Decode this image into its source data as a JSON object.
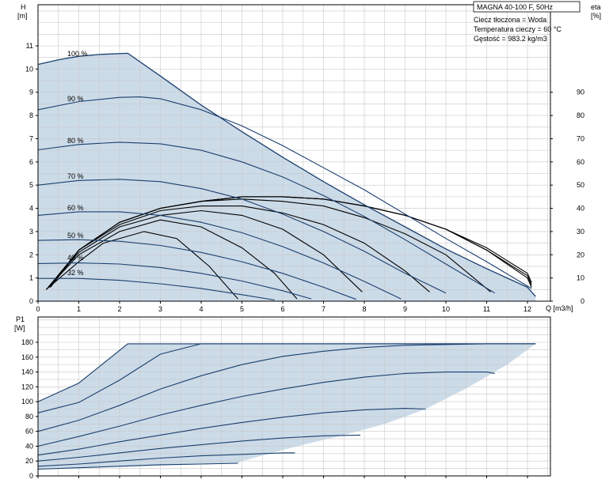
{
  "chart_data": [
    {
      "type": "line",
      "title": "MAGNA 40-100 F, 50Hz",
      "info_lines": [
        "Ciecz tłoczona = Woda",
        "Temperatura cieczy = 60 °C",
        "Gęstość = 983.2 kg/m3"
      ],
      "ylabel": [
        "H",
        "[m]"
      ],
      "y2label": [
        "eta",
        "[%]"
      ],
      "xlabel": "Q [m3/h]",
      "xlim": [
        0,
        12.5
      ],
      "ylim": [
        0,
        12
      ],
      "y2lim": [
        0,
        100
      ],
      "xticks": [
        0,
        1,
        2,
        3,
        4,
        5,
        6,
        7,
        8,
        9,
        10,
        11,
        12
      ],
      "yticks": [
        0,
        1,
        2,
        3,
        4,
        5,
        6,
        7,
        8,
        9,
        10,
        11
      ],
      "y2ticks": [
        0,
        10,
        20,
        30,
        40,
        50,
        60,
        70,
        80,
        90
      ],
      "grid": true,
      "operating_area": [
        [
          0,
          10.2
        ],
        [
          0.5,
          10.4
        ],
        [
          1.0,
          10.55
        ],
        [
          1.5,
          10.63
        ],
        [
          2.2,
          10.68
        ],
        [
          3.0,
          9.7
        ],
        [
          4.0,
          8.45
        ],
        [
          5.0,
          7.3
        ],
        [
          6.0,
          6.2
        ],
        [
          7.0,
          5.15
        ],
        [
          8.0,
          4.15
        ],
        [
          9.0,
          3.2
        ],
        [
          10.0,
          2.25
        ],
        [
          11.0,
          1.4
        ],
        [
          12.0,
          0.6
        ],
        [
          12.2,
          0.2
        ],
        [
          12.2,
          0.0
        ],
        [
          0.0,
          0.0
        ]
      ],
      "series": [
        {
          "name": "100 %",
          "x": [
            0,
            0.5,
            1.0,
            1.5,
            2.2,
            3.0,
            4.0,
            5.0,
            6.0,
            7.0,
            8.0,
            9.0,
            10.0,
            11.0,
            12.0,
            12.2
          ],
          "y": [
            10.2,
            10.4,
            10.55,
            10.63,
            10.68,
            9.7,
            8.45,
            7.3,
            6.2,
            5.15,
            4.15,
            3.2,
            2.25,
            1.4,
            0.6,
            0.2
          ]
        },
        {
          "name": "90 %",
          "x": [
            0,
            1,
            2,
            2.5,
            3,
            4,
            5,
            6,
            7,
            8,
            9,
            10,
            11,
            12.1
          ],
          "y": [
            8.25,
            8.6,
            8.78,
            8.8,
            8.72,
            8.25,
            7.55,
            6.7,
            5.75,
            4.8,
            3.75,
            2.7,
            1.7,
            0.55
          ]
        },
        {
          "name": "80 %",
          "x": [
            0,
            1,
            2,
            3,
            4,
            5,
            6,
            7,
            8,
            9,
            10,
            11.2
          ],
          "y": [
            6.52,
            6.75,
            6.85,
            6.78,
            6.5,
            6.0,
            5.35,
            4.55,
            3.65,
            2.65,
            1.6,
            0.35
          ]
        },
        {
          "name": "70 %",
          "x": [
            0,
            1,
            2,
            3,
            4,
            5,
            6,
            7,
            8,
            9,
            10.0
          ],
          "y": [
            5.0,
            5.2,
            5.25,
            5.15,
            4.85,
            4.4,
            3.75,
            3.0,
            2.15,
            1.2,
            0.35
          ]
        },
        {
          "name": "60 %",
          "x": [
            0,
            1,
            2,
            3,
            4,
            5,
            6,
            7,
            8,
            8.9
          ],
          "y": [
            3.7,
            3.85,
            3.85,
            3.7,
            3.4,
            2.95,
            2.35,
            1.65,
            0.85,
            0.1
          ]
        },
        {
          "name": "50 %",
          "x": [
            0,
            1,
            2,
            3,
            4,
            5,
            6,
            7,
            7.8
          ],
          "y": [
            2.62,
            2.65,
            2.58,
            2.4,
            2.1,
            1.7,
            1.2,
            0.6,
            0.08
          ]
        },
        {
          "name": "40 %",
          "x": [
            0,
            1,
            2,
            3,
            4,
            5,
            6,
            6.7
          ],
          "y": [
            1.62,
            1.65,
            1.6,
            1.45,
            1.2,
            0.87,
            0.45,
            0.1
          ]
        },
        {
          "name": "32 %",
          "x": [
            0,
            1,
            2,
            3,
            4,
            5,
            5.8
          ],
          "y": [
            0.98,
            0.98,
            0.9,
            0.75,
            0.55,
            0.28,
            0.05
          ]
        }
      ],
      "efficiency_curves_percent": [
        {
          "x": [
            0.2,
            1.0,
            1.6,
            2.6,
            3.4,
            4.2,
            4.9
          ],
          "y": [
            5,
            17,
            25,
            30,
            27,
            15,
            1
          ]
        },
        {
          "x": [
            0.2,
            1.0,
            2.0,
            3.0,
            4.0,
            5.0,
            5.8,
            6.35
          ],
          "y": [
            5,
            20,
            30,
            35,
            32,
            23,
            12,
            1
          ]
        },
        {
          "x": [
            0.25,
            1.0,
            2.0,
            3.0,
            4.0,
            5.0,
            6.0,
            7.0,
            7.95
          ],
          "y": [
            6,
            21,
            32,
            37,
            39,
            37,
            31,
            20,
            4
          ]
        },
        {
          "x": [
            0.25,
            1.0,
            2.0,
            3.0,
            4.0,
            5.0,
            6.0,
            7.0,
            8.0,
            9.0,
            9.6
          ],
          "y": [
            6,
            22,
            33,
            39,
            41,
            41,
            38,
            33,
            25,
            13,
            4
          ]
        },
        {
          "x": [
            0.3,
            1.0,
            2.0,
            3.0,
            4.0,
            5.0,
            6.0,
            7.0,
            8.0,
            9.0,
            10.0,
            11.1
          ],
          "y": [
            6,
            22,
            34,
            40,
            43,
            44,
            43,
            41,
            36,
            29,
            20,
            4
          ]
        },
        {
          "x": [
            0.3,
            1.0,
            2.0,
            3.0,
            4.0,
            5.0,
            6.0,
            7.0,
            8.0,
            9.0,
            10.0,
            11.0,
            12.0,
            12.1
          ],
          "y": [
            6,
            22,
            34,
            40,
            43,
            45,
            45,
            44,
            41,
            37,
            31,
            22,
            10,
            6
          ]
        },
        {
          "x": [
            0.3,
            1.0,
            2.0,
            3.0,
            4.0,
            5.0,
            6.0,
            7.0,
            8.0,
            9.0,
            10.0,
            11.0,
            12.0,
            12.1
          ],
          "y": [
            6,
            22,
            34,
            40,
            43,
            45,
            45,
            44,
            41,
            37,
            31,
            22,
            11,
            7
          ]
        },
        {
          "x": [
            0.3,
            1.0,
            2.0,
            3.0,
            4.0,
            5.0,
            6.0,
            7.0,
            8.0,
            9.0,
            10.0,
            11.0,
            12.0,
            12.1
          ],
          "y": [
            6,
            22,
            34,
            40,
            43,
            45,
            45,
            44,
            41,
            37,
            31,
            23,
            12,
            8
          ]
        }
      ]
    },
    {
      "type": "line",
      "ylabel": [
        "P1",
        "[W]"
      ],
      "xlim": [
        0,
        12.5
      ],
      "ylim": [
        0,
        190
      ],
      "xticks": [
        0,
        1,
        2,
        3,
        4,
        5,
        6,
        7,
        8,
        9,
        10,
        11,
        12
      ],
      "yticks": [
        0,
        20,
        40,
        60,
        80,
        100,
        120,
        140,
        160,
        180
      ],
      "grid": true,
      "operating_area": [
        [
          0,
          100
        ],
        [
          1.0,
          125
        ],
        [
          2.2,
          178
        ],
        [
          12.2,
          178
        ],
        [
          11.5,
          150
        ],
        [
          10.5,
          118
        ],
        [
          9.5,
          90
        ],
        [
          8.5,
          70
        ],
        [
          7.5,
          55
        ],
        [
          6.5,
          42
        ],
        [
          5.8,
          32
        ],
        [
          5.0,
          20
        ],
        [
          4.9,
          17
        ],
        [
          0,
          9
        ]
      ],
      "series": [
        {
          "x": [
            0,
            1.0,
            2.2,
            12.2
          ],
          "y": [
            100,
            125,
            178,
            178
          ]
        },
        {
          "x": [
            0,
            1.0,
            2.0,
            3.0,
            4.0,
            12.2
          ],
          "y": [
            85,
            99,
            129,
            164,
            178,
            178
          ]
        },
        {
          "x": [
            0,
            1.0,
            2.0,
            3.0,
            4.0,
            5.0,
            6.0,
            7.0,
            8.0,
            9.0,
            10.0,
            11.0,
            12.2
          ],
          "y": [
            60,
            75,
            95,
            117,
            135,
            150,
            161,
            168,
            173,
            176,
            177,
            178,
            178
          ]
        },
        {
          "x": [
            0,
            1.0,
            2.0,
            3.0,
            4.0,
            5.0,
            6.0,
            7.0,
            8.0,
            9.0,
            10.0,
            11.0,
            11.2
          ],
          "y": [
            40,
            53,
            67,
            82,
            95,
            107,
            117,
            126,
            133,
            138,
            140,
            140,
            138
          ]
        },
        {
          "x": [
            0,
            1.0,
            2.0,
            3.0,
            4.0,
            5.0,
            6.0,
            7.0,
            8.0,
            9.0,
            9.5
          ],
          "y": [
            28,
            36,
            46,
            55,
            64,
            72,
            79,
            85,
            89,
            91,
            90
          ]
        },
        {
          "x": [
            0,
            1.0,
            2.0,
            3.0,
            4.0,
            5.0,
            6.0,
            7.0,
            7.9
          ],
          "y": [
            20,
            25,
            31,
            37,
            42,
            47,
            51,
            54,
            55
          ]
        },
        {
          "x": [
            0,
            1.0,
            2.0,
            3.0,
            4.0,
            5.0,
            6.0,
            6.3
          ],
          "y": [
            13,
            16,
            20,
            24,
            27,
            29,
            31,
            31
          ]
        },
        {
          "x": [
            0,
            1.0,
            2.0,
            3.0,
            4.0,
            4.9
          ],
          "y": [
            9,
            11,
            13,
            15,
            16,
            17
          ]
        }
      ]
    }
  ],
  "colors": {
    "area_fill": "#ccdbe8",
    "curve": "#1a3f6e",
    "efficiency": "#000000",
    "grid": "#c8c8c8",
    "axis": "#000000",
    "text": "#000000"
  }
}
